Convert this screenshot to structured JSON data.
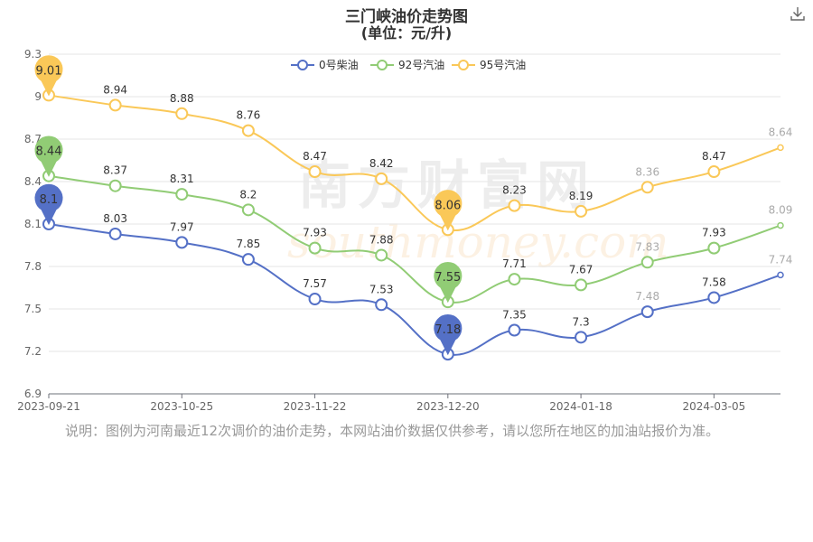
{
  "header": {
    "title": "三门峡油价走势图",
    "subtitle": "(单位：元/升)"
  },
  "toolbar": {
    "download_icon": "download-icon"
  },
  "note": "说明：图例为河南最近12次调价的油价走势，本网站油价数据仅供参考，请以您所在地区的加油站报价为准。",
  "watermark": {
    "cn": "南方财富网",
    "en": "southmoney.com"
  },
  "chart_data": {
    "type": "line",
    "x_tick_labels": [
      "2023-09-21",
      "2023-10-25",
      "2023-11-22",
      "2023-12-20",
      "2024-01-18",
      "2024-03-05"
    ],
    "y_tick_labels": [
      "6.9",
      "7.2",
      "7.5",
      "7.8",
      "8.1",
      "8.4",
      "8.7",
      "9",
      "9.3"
    ],
    "ylim": [
      6.9,
      9.3
    ],
    "grid": true,
    "legend_position": "top-center",
    "series": [
      {
        "name": "0号柴油",
        "color": "#5470c6",
        "values": [
          8.1,
          8.03,
          7.97,
          7.85,
          7.57,
          7.53,
          7.18,
          7.35,
          7.3,
          7.48,
          7.58,
          7.74
        ],
        "max": 8.1,
        "min": 7.18
      },
      {
        "name": "92号汽油",
        "color": "#91cc75",
        "values": [
          8.44,
          8.37,
          8.31,
          8.2,
          7.93,
          7.88,
          7.55,
          7.71,
          7.67,
          7.83,
          7.93,
          8.09
        ],
        "max": 8.44,
        "min": 7.55
      },
      {
        "name": "95号汽油",
        "color": "#fac858",
        "values": [
          9.01,
          8.94,
          8.88,
          8.76,
          8.47,
          8.42,
          8.06,
          8.23,
          8.19,
          8.36,
          8.47,
          8.64
        ],
        "max": 9.01,
        "min": 8.06
      }
    ]
  }
}
